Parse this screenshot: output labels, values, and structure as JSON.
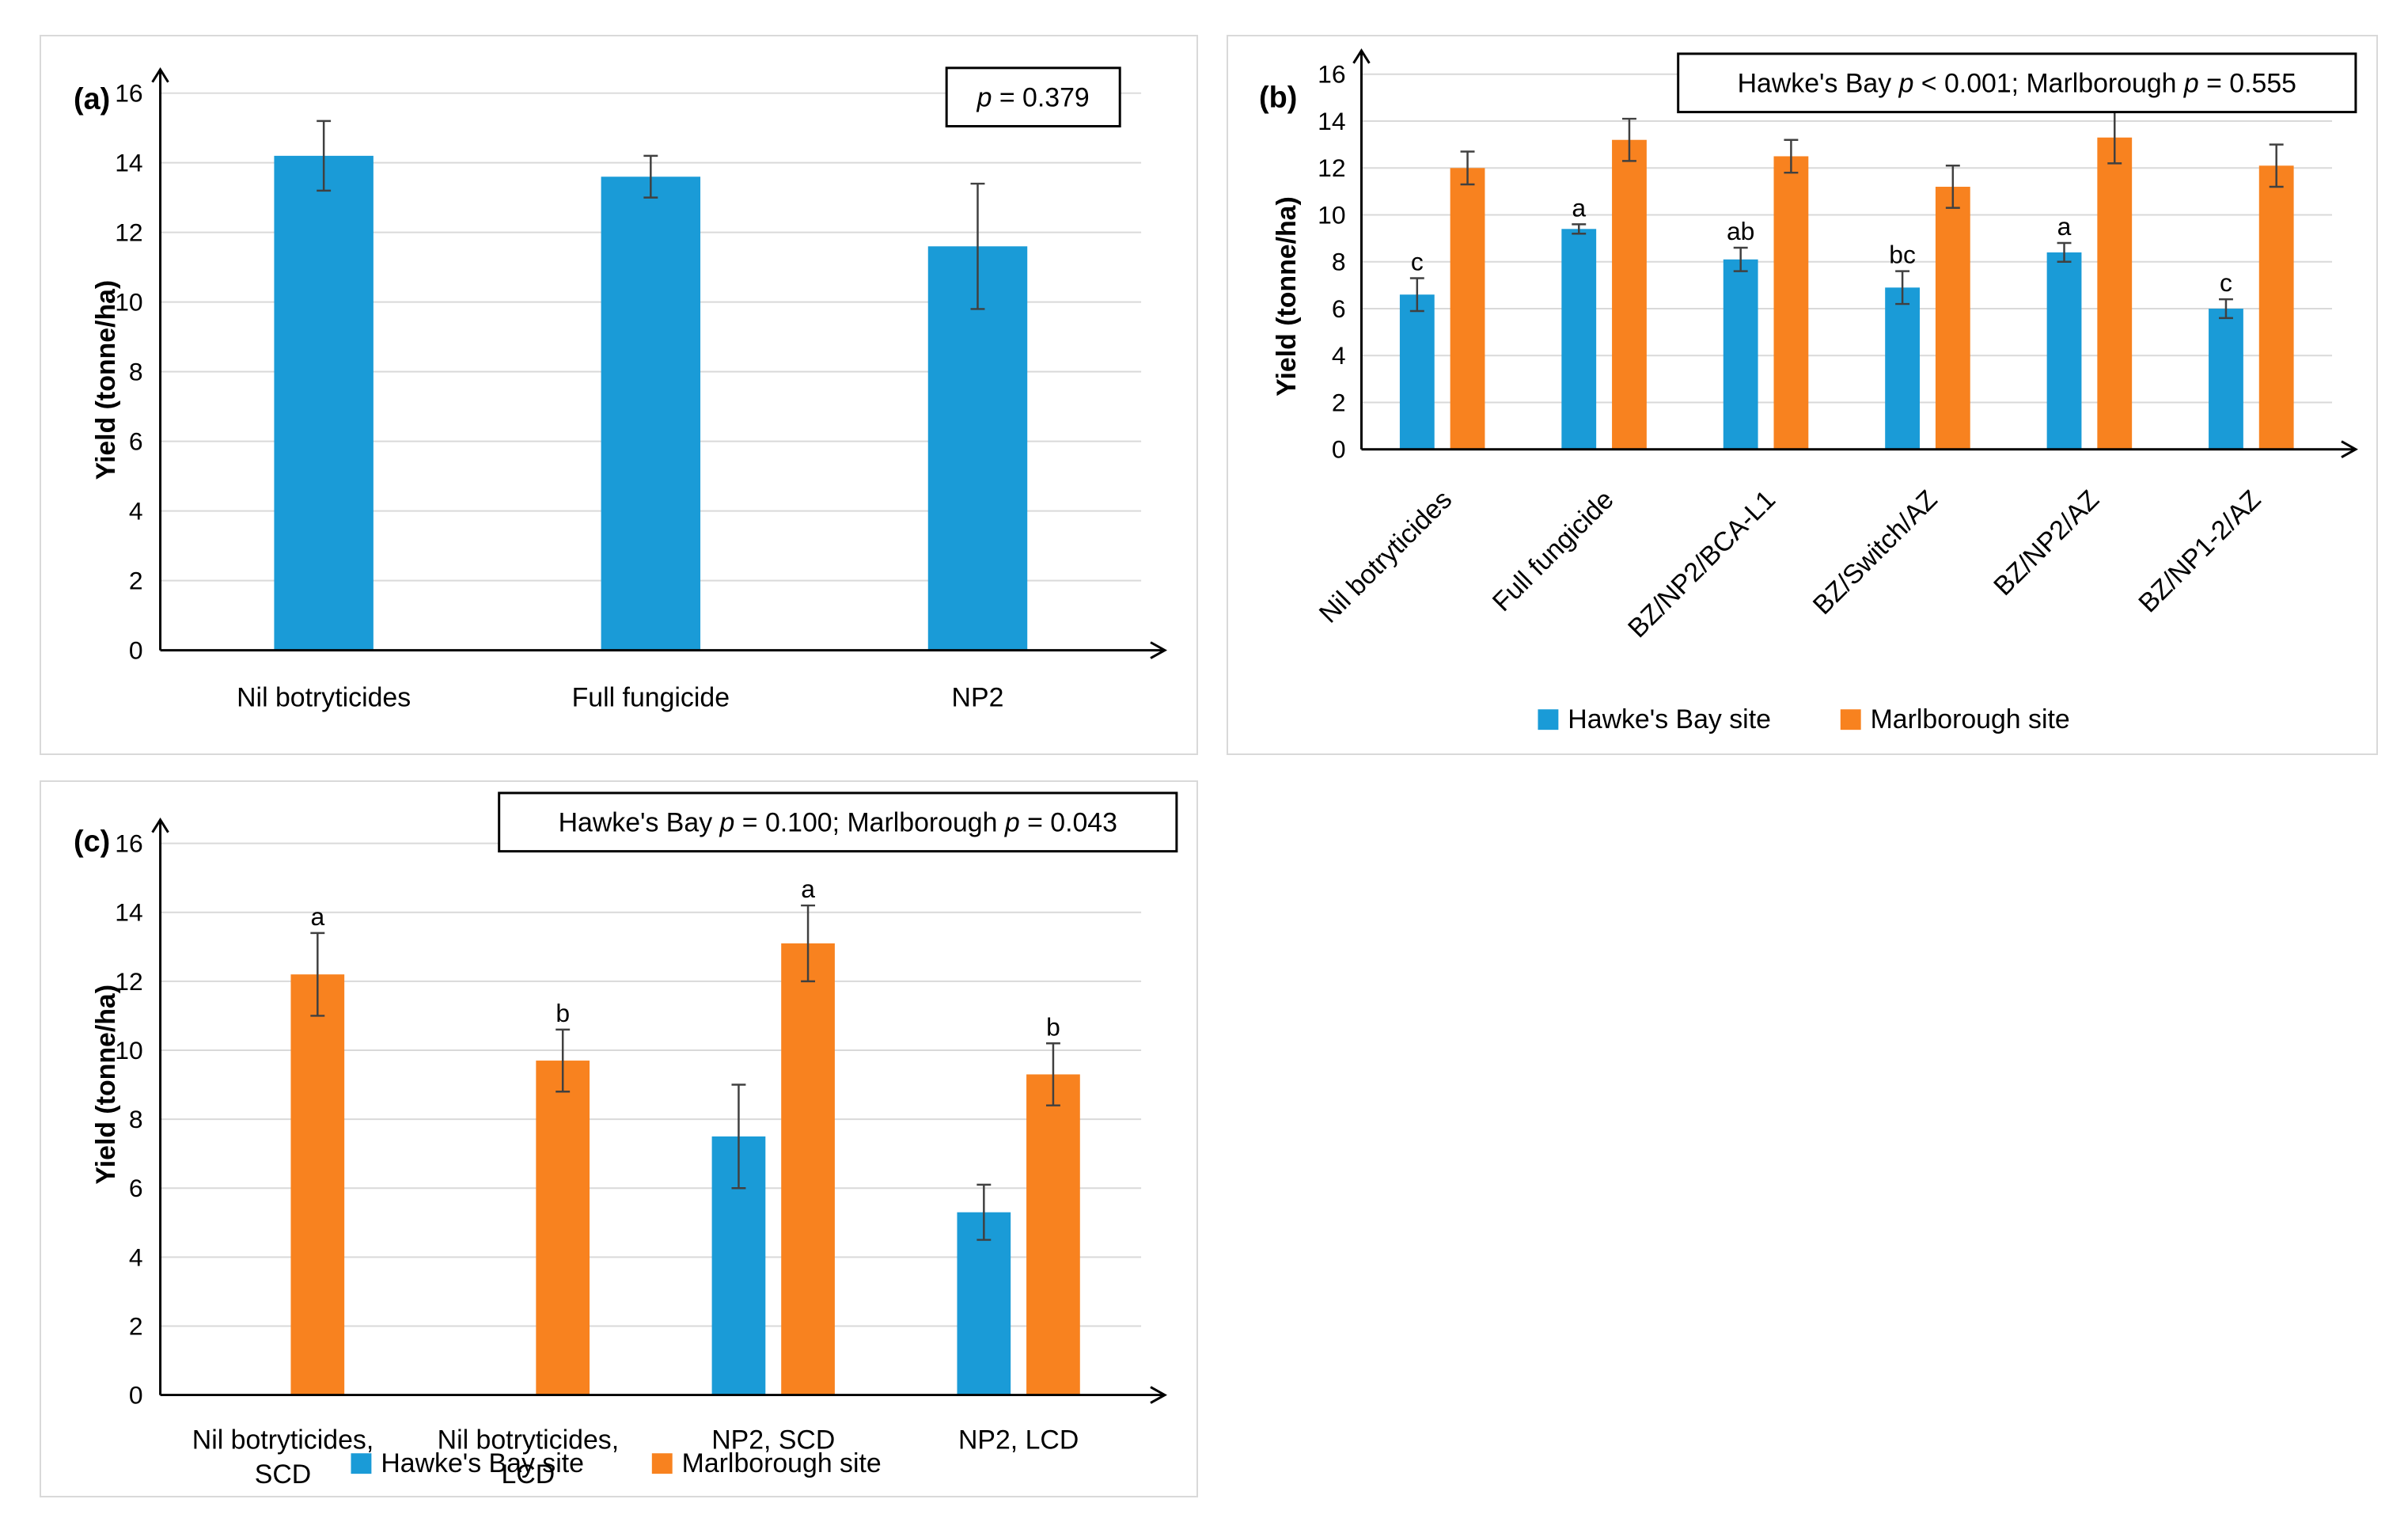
{
  "colors": {
    "hawkes_bay": "#1a9bd7",
    "marlborough": "#f8821f",
    "grid": "#d9d9d9",
    "axis": "#000000",
    "error_bar": "#404040"
  },
  "chart_data": [
    {
      "panel": "(a)",
      "type": "bar",
      "title": "",
      "xlabel": "",
      "ylabel": "Yield (tonne/ha)",
      "ylim": [
        0,
        16
      ],
      "yticks": [
        "0",
        "2",
        "4",
        "6",
        "8",
        "10",
        "12",
        "14",
        "16"
      ],
      "grid": true,
      "categories": [
        "Nil botryticides",
        "Full fungicide",
        "NP2"
      ],
      "series": [
        {
          "name": "Yield",
          "color": "#1a9bd7",
          "values": [
            14.2,
            13.6,
            11.6
          ],
          "errors": [
            1.0,
            0.6,
            1.8
          ],
          "letters": [
            "",
            "",
            ""
          ]
        }
      ],
      "annotation": {
        "prefix": "",
        "p_label": "p",
        "rest": " = 0.379"
      },
      "legend": null
    },
    {
      "panel": "(b)",
      "type": "bar",
      "title": "",
      "xlabel": "",
      "ylabel": "Yield (tonne/ha)",
      "ylim": [
        0,
        16
      ],
      "yticks": [
        "0",
        "2",
        "4",
        "6",
        "8",
        "10",
        "12",
        "14",
        "16"
      ],
      "grid": true,
      "categories": [
        "Nil botryticides",
        "Full fungicide",
        "BZ/NP2/BCA-L1",
        "BZ/Switch/AZ",
        "BZ/NP2/AZ",
        "BZ/NP1-2/AZ"
      ],
      "series": [
        {
          "name": "Hawke's Bay site",
          "color": "#1a9bd7",
          "values": [
            6.6,
            9.4,
            8.1,
            6.9,
            8.4,
            6.0
          ],
          "errors": [
            0.7,
            0.2,
            0.5,
            0.7,
            0.4,
            0.4
          ],
          "letters": [
            "c",
            "a",
            "ab",
            "bc",
            "a",
            "c"
          ]
        },
        {
          "name": "Marlborough site",
          "color": "#f8821f",
          "values": [
            12.0,
            13.2,
            12.5,
            11.2,
            13.3,
            12.1
          ],
          "errors": [
            0.7,
            0.9,
            0.7,
            0.9,
            1.1,
            0.9
          ],
          "letters": [
            "",
            "",
            "",
            "",
            "",
            ""
          ]
        }
      ],
      "annotation": {
        "segments": [
          {
            "t": "Hawke's Bay ",
            "i": false
          },
          {
            "t": "p",
            "i": true
          },
          {
            "t": " < 0.001;  Marlborough ",
            "i": false
          },
          {
            "t": "p",
            "i": true
          },
          {
            "t": " = 0.555",
            "i": false
          }
        ]
      },
      "legend": {
        "position": "bottom",
        "labels": [
          "Hawke's Bay site",
          "Marlborough site"
        ]
      }
    },
    {
      "panel": "(c)",
      "type": "bar",
      "title": "",
      "xlabel": "",
      "ylabel": "Yield (tonne/ha)",
      "ylim": [
        0,
        16
      ],
      "yticks": [
        "0",
        "2",
        "4",
        "6",
        "8",
        "10",
        "12",
        "14",
        "16"
      ],
      "grid": true,
      "categories": [
        [
          "Nil botryticides,",
          "SCD"
        ],
        [
          "Nil botryticides,",
          "LCD"
        ],
        [
          "NP2, SCD"
        ],
        [
          "NP2, LCD"
        ]
      ],
      "series": [
        {
          "name": "Hawke's Bay site",
          "color": "#1a9bd7",
          "values": [
            null,
            null,
            7.5,
            5.3
          ],
          "errors": [
            null,
            null,
            1.5,
            0.8
          ],
          "letters": [
            "",
            "",
            "",
            ""
          ]
        },
        {
          "name": "Marlborough site",
          "color": "#f8821f",
          "values": [
            12.2,
            9.7,
            13.1,
            9.3
          ],
          "errors": [
            1.2,
            0.9,
            1.1,
            0.9
          ],
          "letters": [
            "a",
            "b",
            "a",
            "b"
          ]
        }
      ],
      "annotation": {
        "segments": [
          {
            "t": "Hawke's Bay ",
            "i": false
          },
          {
            "t": "p",
            "i": true
          },
          {
            "t": " = 0.100;  Marlborough ",
            "i": false
          },
          {
            "t": "p",
            "i": true
          },
          {
            "t": " = 0.043",
            "i": false
          }
        ]
      },
      "legend": {
        "position": "bottom",
        "labels": [
          "Hawke's Bay site",
          "Marlborough site"
        ]
      }
    }
  ]
}
